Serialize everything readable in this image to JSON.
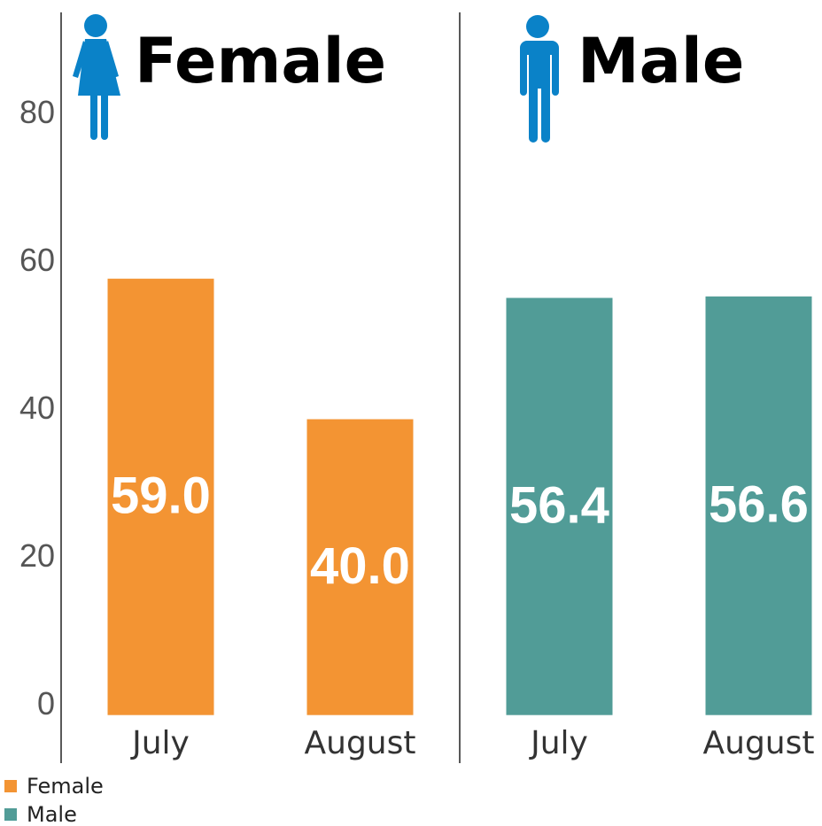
{
  "chart_data": {
    "type": "bar",
    "categories": [
      "July",
      "August"
    ],
    "series": [
      {
        "name": "Female",
        "color": "#f39433",
        "values": [
          59.0,
          40.0
        ],
        "value_labels": [
          "59.0",
          "40.0"
        ]
      },
      {
        "name": "Male",
        "color": "#519c97",
        "values": [
          56.4,
          56.6
        ],
        "value_labels": [
          "56.4",
          "56.6"
        ]
      }
    ],
    "ylim": [
      -6.5,
      95
    ],
    "yticks": [
      0,
      20,
      40,
      60,
      80
    ],
    "grid": false
  }
}
